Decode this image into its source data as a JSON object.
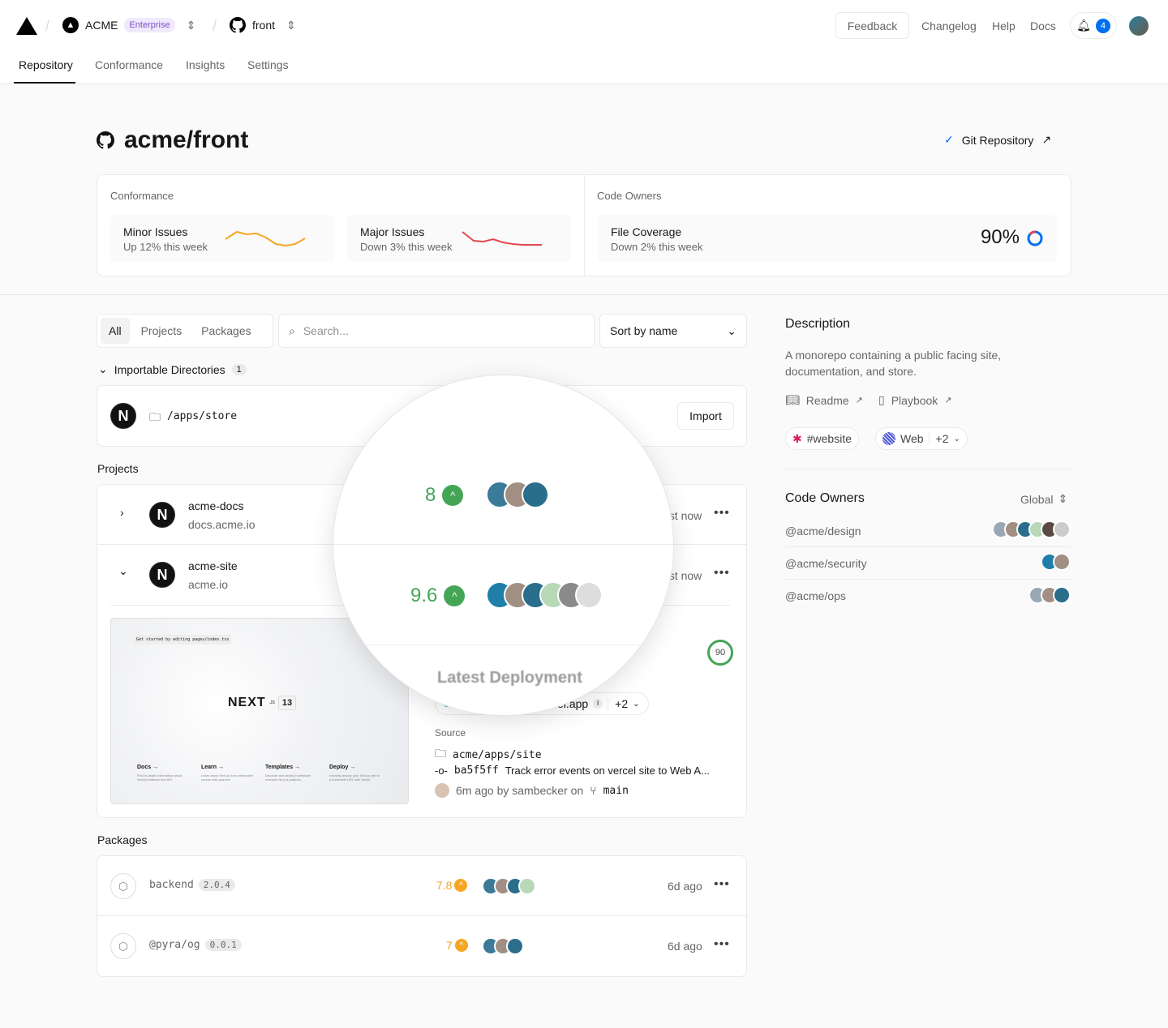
{
  "header": {
    "org": "ACME",
    "plan": "Enterprise",
    "repo": "front",
    "feedback": "Feedback",
    "changelog": "Changelog",
    "help": "Help",
    "docs": "Docs",
    "notifications": "4"
  },
  "tabs": [
    "Repository",
    "Conformance",
    "Insights",
    "Settings"
  ],
  "repo": {
    "title": "acme/front",
    "git_link": "Git Repository"
  },
  "conformance": {
    "label": "Conformance",
    "minor": {
      "title": "Minor Issues",
      "sub": "Up 12% this week"
    },
    "major": {
      "title": "Major Issues",
      "sub": "Down 3% this week"
    }
  },
  "code_owners_card": {
    "label": "Code Owners",
    "title": "File Coverage",
    "sub": "Down 2% this week",
    "value": "90%"
  },
  "filters": {
    "tabs": [
      "All",
      "Projects",
      "Packages"
    ],
    "search_placeholder": "Search...",
    "sort": "Sort by name"
  },
  "importable": {
    "label": "Importable Directories",
    "count": "1",
    "dir": "/apps/store",
    "import": "Import"
  },
  "projects": {
    "label": "Projects",
    "items": [
      {
        "name": "acme-docs",
        "domain": "docs.acme.io",
        "time": "Just now",
        "score": "8",
        "avatars": 3
      },
      {
        "name": "acme-site",
        "domain": "acme.io",
        "time": "Just now",
        "score": "9.6",
        "avatars": 6
      }
    ]
  },
  "deployment": {
    "heading": "Latest Deployment",
    "url": "acme-site-main.vercel.app",
    "more": "+2",
    "score": "90",
    "source_label": "Source",
    "path": "acme/apps/site",
    "commit": "ba5f5ff",
    "message": "Track error events on vercel site to Web A...",
    "meta": "6m ago by sambecker on",
    "branch": "main"
  },
  "preview": {
    "top": "Get started by editing pages/index.tsx",
    "logo": "NEXT",
    "logo_sub": ".JS",
    "version": "13",
    "links": [
      {
        "t": "Docs →",
        "d": "Find in-depth information about Next.js features and API."
      },
      {
        "t": "Learn →",
        "d": "Learn about Next.js in an interactive course with quizzes!"
      },
      {
        "t": "Templates →",
        "d": "Discover and deploy boilerplate example Next.js projects."
      },
      {
        "t": "Deploy →",
        "d": "Instantly deploy your Next.js site to a shareable URL with Vercel."
      }
    ]
  },
  "packages": {
    "label": "Packages",
    "items": [
      {
        "name": "backend",
        "version": "2.0.4",
        "score": "7.8",
        "time": "6d ago",
        "avatars": 4
      },
      {
        "name": "@pyra/og",
        "version": "0.0.1",
        "score": "7",
        "time": "6d ago",
        "avatars": 3
      }
    ]
  },
  "sidebar": {
    "description_title": "Description",
    "description": "A monorepo containing a public facing site, documentation, and store.",
    "readme": "Readme",
    "playbook": "Playbook",
    "slack": "#website",
    "team": "Web",
    "team_more": "+2",
    "owners_title": "Code Owners",
    "owners_scope": "Global",
    "owners": [
      {
        "name": "@acme/design",
        "avatars": 6
      },
      {
        "name": "@acme/security",
        "avatars": 2
      },
      {
        "name": "@acme/ops",
        "avatars": 3
      }
    ]
  },
  "colors": {
    "accent": "#0070f3",
    "success": "#45a557",
    "warning": "#f5a623",
    "error": "#e5484d",
    "enterprise_bg": "#f0e9fb",
    "enterprise_fg": "#7d4fc9"
  }
}
